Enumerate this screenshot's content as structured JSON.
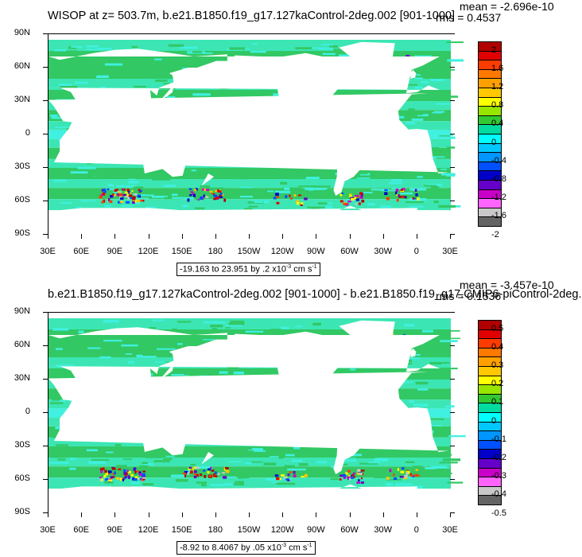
{
  "panels": [
    {
      "title": "WISOP at z= 503.7m, b.e21.B1850.f19_g17.127kaControl-2deg.002 [901-1000]",
      "mean": "mean = -2.696e-10",
      "rms": "rms = 0.4537",
      "range": "-19.163 to 23.951 by .2 x10",
      "range_exp": "-3",
      "range_unit": " cm s",
      "range_unit_exp": "-1",
      "colorbar_labels": [
        "2",
        "1.6",
        "1.2",
        "0.8",
        "0.4",
        "0",
        "-0.4",
        "-0.8",
        "-1.2",
        "-1.6",
        "-2"
      ]
    },
    {
      "title": "b.e21.B1850.f19_g17.127kaControl-2deg.002 [901-1000] - b.e21.B1850.f19_g17.CMIP6-piControl-2deg.",
      "mean": "mean = -3.457e-10",
      "rms": "rms = 0.1536",
      "range": "-8.92 to 8.4067 by .05 x10",
      "range_exp": "-3",
      "range_unit": " cm s",
      "range_unit_exp": "-1",
      "colorbar_labels": [
        "0.5",
        "0.4",
        "0.3",
        "0.2",
        "0.1",
        "0",
        "-0.1",
        "-0.2",
        "-0.3",
        "-0.4",
        "-0.5"
      ]
    }
  ],
  "lat_labels": [
    "90N",
    "60N",
    "30N",
    "0",
    "30S",
    "60S",
    "90S"
  ],
  "lon_labels": [
    "30E",
    "60E",
    "90E",
    "120E",
    "150E",
    "180",
    "150W",
    "120W",
    "90W",
    "60W",
    "30W",
    "0",
    "30E"
  ],
  "colors": {
    "colorbar": [
      "#b00000",
      "#e00000",
      "#ff3c00",
      "#ff7800",
      "#ffa000",
      "#ffc800",
      "#ffff00",
      "#96e600",
      "#32c832",
      "#00dca0",
      "#00ffff",
      "#00c8ff",
      "#0096ff",
      "#0050ff",
      "#0000c8",
      "#6400c8",
      "#c800c8",
      "#ff64ff",
      "#c8c8c8",
      "#646464"
    ],
    "ocean_main": "#32c864",
    "ocean_alt": "#3ce6b4",
    "ocean_cyan": "#40f0e0",
    "land": "#ffffff"
  }
}
